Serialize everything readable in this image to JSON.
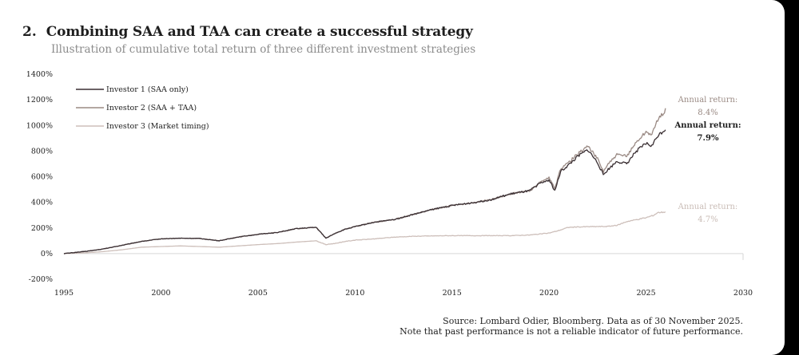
{
  "header": {
    "number": "2.",
    "title": "Combining SAA and TAA can create a successful strategy",
    "subtitle": "Illustration of cumulative total return of three different investment strategies"
  },
  "chart_data": {
    "type": "line",
    "xlim": [
      1995,
      2030
    ],
    "ylim": [
      -200,
      1400
    ],
    "x_ticks": [
      1995,
      2000,
      2005,
      2010,
      2015,
      2020,
      2025,
      2030
    ],
    "x_tick_labels": [
      "1995",
      "2000",
      "2005",
      "2010",
      "2015",
      "2020",
      "2025",
      "2030"
    ],
    "y_ticks": [
      -200,
      0,
      200,
      400,
      600,
      800,
      1000,
      1200,
      1400
    ],
    "y_tick_labels": [
      "-200%",
      "0%",
      "200%",
      "400%",
      "600%",
      "800%",
      "1000%",
      "1200%",
      "1400%"
    ],
    "grid": false,
    "legend_position": "top-left",
    "series": [
      {
        "name": "Investor 1 (SAA only)",
        "color": "#3a2f33",
        "points": [
          [
            1995,
            0
          ],
          [
            1996,
            15
          ],
          [
            1997,
            35
          ],
          [
            1998,
            65
          ],
          [
            1999,
            95
          ],
          [
            2000,
            115
          ],
          [
            2001,
            120
          ],
          [
            2002,
            118
          ],
          [
            2003,
            100
          ],
          [
            2004,
            130
          ],
          [
            2005,
            150
          ],
          [
            2006,
            165
          ],
          [
            2007,
            195
          ],
          [
            2008,
            205
          ],
          [
            2008.5,
            120
          ],
          [
            2009,
            160
          ],
          [
            2009.5,
            190
          ],
          [
            2010,
            210
          ],
          [
            2011,
            245
          ],
          [
            2012,
            265
          ],
          [
            2013,
            305
          ],
          [
            2014,
            345
          ],
          [
            2015,
            375
          ],
          [
            2016,
            395
          ],
          [
            2017,
            420
          ],
          [
            2018,
            465
          ],
          [
            2019,
            490
          ],
          [
            2019.5,
            545
          ],
          [
            2020,
            575
          ],
          [
            2020.3,
            490
          ],
          [
            2020.6,
            640
          ],
          [
            2021,
            690
          ],
          [
            2021.5,
            760
          ],
          [
            2022,
            810
          ],
          [
            2022.5,
            710
          ],
          [
            2022.8,
            615
          ],
          [
            2023,
            650
          ],
          [
            2023.5,
            720
          ],
          [
            2024,
            700
          ],
          [
            2024.5,
            800
          ],
          [
            2025,
            860
          ],
          [
            2025.3,
            840
          ],
          [
            2025.6,
            920
          ],
          [
            2026,
            970
          ]
        ]
      },
      {
        "name": "Investor 2 (SAA + TAA)",
        "color": "#9a8a84",
        "points": [
          [
            1995,
            0
          ],
          [
            1996,
            15
          ],
          [
            1997,
            35
          ],
          [
            1998,
            65
          ],
          [
            1999,
            95
          ],
          [
            2000,
            115
          ],
          [
            2001,
            120
          ],
          [
            2002,
            118
          ],
          [
            2003,
            100
          ],
          [
            2004,
            130
          ],
          [
            2005,
            150
          ],
          [
            2006,
            165
          ],
          [
            2007,
            195
          ],
          [
            2008,
            205
          ],
          [
            2008.5,
            120
          ],
          [
            2009,
            160
          ],
          [
            2009.5,
            190
          ],
          [
            2010,
            210
          ],
          [
            2011,
            245
          ],
          [
            2012,
            265
          ],
          [
            2013,
            305
          ],
          [
            2014,
            345
          ],
          [
            2015,
            375
          ],
          [
            2016,
            395
          ],
          [
            2017,
            420
          ],
          [
            2018,
            465
          ],
          [
            2019,
            490
          ],
          [
            2019.5,
            550
          ],
          [
            2020,
            590
          ],
          [
            2020.3,
            510
          ],
          [
            2020.6,
            660
          ],
          [
            2021,
            710
          ],
          [
            2021.5,
            780
          ],
          [
            2022,
            840
          ],
          [
            2022.5,
            740
          ],
          [
            2022.8,
            640
          ],
          [
            2023,
            690
          ],
          [
            2023.5,
            770
          ],
          [
            2024,
            760
          ],
          [
            2024.5,
            870
          ],
          [
            2025,
            950
          ],
          [
            2025.3,
            930
          ],
          [
            2025.6,
            1040
          ],
          [
            2026,
            1120
          ]
        ]
      },
      {
        "name": "Investor 3 (Market timing)",
        "color": "#cdbfba",
        "points": [
          [
            1995,
            0
          ],
          [
            1996,
            5
          ],
          [
            1997,
            15
          ],
          [
            1998,
            30
          ],
          [
            1999,
            50
          ],
          [
            2000,
            55
          ],
          [
            2001,
            60
          ],
          [
            2002,
            55
          ],
          [
            2003,
            50
          ],
          [
            2004,
            60
          ],
          [
            2005,
            70
          ],
          [
            2006,
            78
          ],
          [
            2007,
            90
          ],
          [
            2008,
            100
          ],
          [
            2008.5,
            70
          ],
          [
            2009,
            80
          ],
          [
            2009.5,
            95
          ],
          [
            2010,
            105
          ],
          [
            2011,
            115
          ],
          [
            2012,
            128
          ],
          [
            2013,
            135
          ],
          [
            2014,
            138
          ],
          [
            2015,
            140
          ],
          [
            2016,
            140
          ],
          [
            2017,
            140
          ],
          [
            2018,
            140
          ],
          [
            2019,
            145
          ],
          [
            2020,
            160
          ],
          [
            2020.5,
            180
          ],
          [
            2021,
            205
          ],
          [
            2022,
            210
          ],
          [
            2023,
            212
          ],
          [
            2023.5,
            220
          ],
          [
            2024,
            250
          ],
          [
            2025,
            280
          ],
          [
            2025.4,
            300
          ],
          [
            2025.6,
            320
          ],
          [
            2026,
            325
          ]
        ]
      }
    ],
    "annotations": [
      {
        "label": "Annual return:",
        "value": "8.4%",
        "color": "#9a8a84"
      },
      {
        "label": "Annual return:",
        "value": "7.9%",
        "color": "#1e1e1e"
      },
      {
        "label": "Annual return:",
        "value": "4.7%",
        "color": "#c9bcb6"
      }
    ]
  },
  "source": {
    "line1": "Source: Lombard Odier, Bloomberg. Data as of 30 November 2025.",
    "line2": "Note that past performance is not a reliable indicator of future performance."
  }
}
